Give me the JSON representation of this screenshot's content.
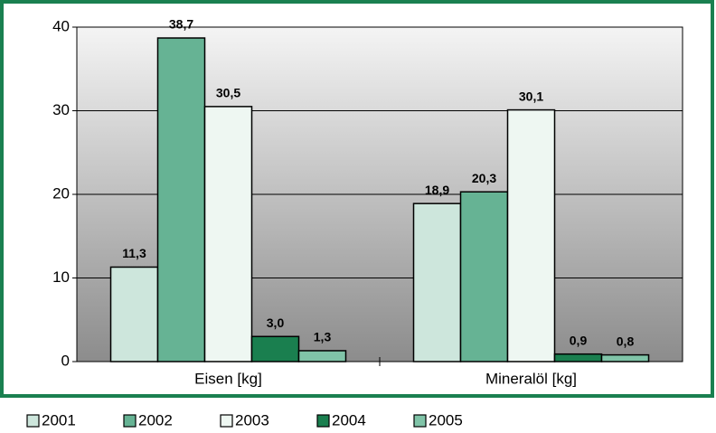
{
  "chart_data": {
    "type": "bar",
    "categories": [
      "Eisen [kg]",
      "Mineralöl [kg]"
    ],
    "series": [
      {
        "name": "2001",
        "color": "#cde6dc",
        "values": [
          11.3,
          18.9
        ],
        "value_labels": [
          "11,3",
          "18,9"
        ]
      },
      {
        "name": "2002",
        "color": "#66b394",
        "values": [
          38.7,
          20.3
        ],
        "value_labels": [
          "38,7",
          "20,3"
        ]
      },
      {
        "name": "2003",
        "color": "#eef7f2",
        "values": [
          30.5,
          30.1
        ],
        "value_labels": [
          "30,5",
          "30,1"
        ]
      },
      {
        "name": "2004",
        "color": "#1a7f4f",
        "values": [
          3.0,
          0.9
        ],
        "value_labels": [
          "3,0",
          "0,9"
        ]
      },
      {
        "name": "2005",
        "color": "#80c4a8",
        "values": [
          1.3,
          0.8
        ],
        "value_labels": [
          "1,3",
          "0,8"
        ]
      }
    ],
    "ylim": [
      0,
      40
    ],
    "yticks": [
      0,
      10,
      20,
      30,
      40
    ],
    "grid": true,
    "legend": "bottom"
  }
}
